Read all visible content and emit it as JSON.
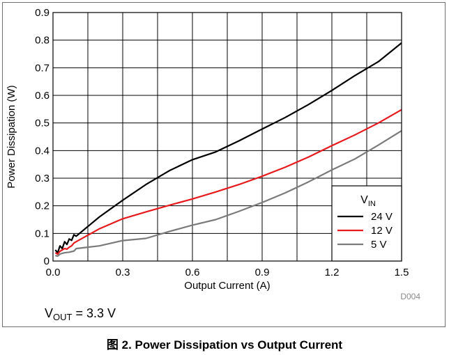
{
  "chart_data": {
    "type": "line",
    "xlabel": "Output Current (A)",
    "ylabel": "Power Dissipation (W)",
    "xlim": [
      0,
      1.5
    ],
    "ylim": [
      0,
      0.9
    ],
    "xticks": [
      "0.0",
      "0.3",
      "0.6",
      "0.9",
      "1.2",
      "1.5"
    ],
    "yticks": [
      "0",
      "0.1",
      "0.2",
      "0.3",
      "0.4",
      "0.5",
      "0.6",
      "0.7",
      "0.8",
      "0.9"
    ],
    "x_minor_step": 0.15,
    "grid": true,
    "legend": {
      "placement": "bottom-right",
      "title_main": "V",
      "title_sub": "IN"
    },
    "annotation": {
      "main": "V",
      "sub": "OUT",
      "rest": " = 3.3 V"
    },
    "code": "D004",
    "series": [
      {
        "name": "24 V",
        "color": "#000000",
        "x": [
          0.01,
          0.02,
          0.03,
          0.04,
          0.05,
          0.06,
          0.07,
          0.08,
          0.09,
          0.1,
          0.2,
          0.3,
          0.4,
          0.5,
          0.6,
          0.7,
          0.8,
          0.9,
          1.0,
          1.1,
          1.2,
          1.3,
          1.4,
          1.5
        ],
        "y": [
          0.04,
          0.03,
          0.055,
          0.045,
          0.07,
          0.06,
          0.08,
          0.075,
          0.095,
          0.09,
          0.16,
          0.22,
          0.277,
          0.327,
          0.367,
          0.395,
          0.435,
          0.478,
          0.52,
          0.567,
          0.618,
          0.672,
          0.722,
          0.79
        ]
      },
      {
        "name": "12 V",
        "color": "#e8191d",
        "x": [
          0.01,
          0.02,
          0.03,
          0.04,
          0.05,
          0.06,
          0.07,
          0.08,
          0.09,
          0.1,
          0.2,
          0.3,
          0.4,
          0.5,
          0.6,
          0.7,
          0.8,
          0.9,
          1.0,
          1.1,
          1.2,
          1.3,
          1.4,
          1.5
        ],
        "y": [
          0.03,
          0.025,
          0.035,
          0.04,
          0.045,
          0.043,
          0.05,
          0.055,
          0.065,
          0.07,
          0.117,
          0.153,
          0.178,
          0.202,
          0.225,
          0.25,
          0.277,
          0.307,
          0.34,
          0.377,
          0.418,
          0.457,
          0.5,
          0.548
        ]
      },
      {
        "name": "5 V",
        "color": "#7a7a7a",
        "x": [
          0.01,
          0.02,
          0.03,
          0.04,
          0.05,
          0.06,
          0.07,
          0.08,
          0.09,
          0.1,
          0.2,
          0.3,
          0.4,
          0.5,
          0.6,
          0.7,
          0.8,
          0.9,
          1.0,
          1.1,
          1.2,
          1.3,
          1.4,
          1.5
        ],
        "y": [
          0.02,
          0.018,
          0.025,
          0.028,
          0.03,
          0.031,
          0.032,
          0.034,
          0.036,
          0.045,
          0.055,
          0.074,
          0.082,
          0.107,
          0.13,
          0.15,
          0.18,
          0.212,
          0.247,
          0.287,
          0.33,
          0.37,
          0.42,
          0.472
        ]
      }
    ]
  },
  "caption": "图 2. Power Dissipation vs Output Current"
}
